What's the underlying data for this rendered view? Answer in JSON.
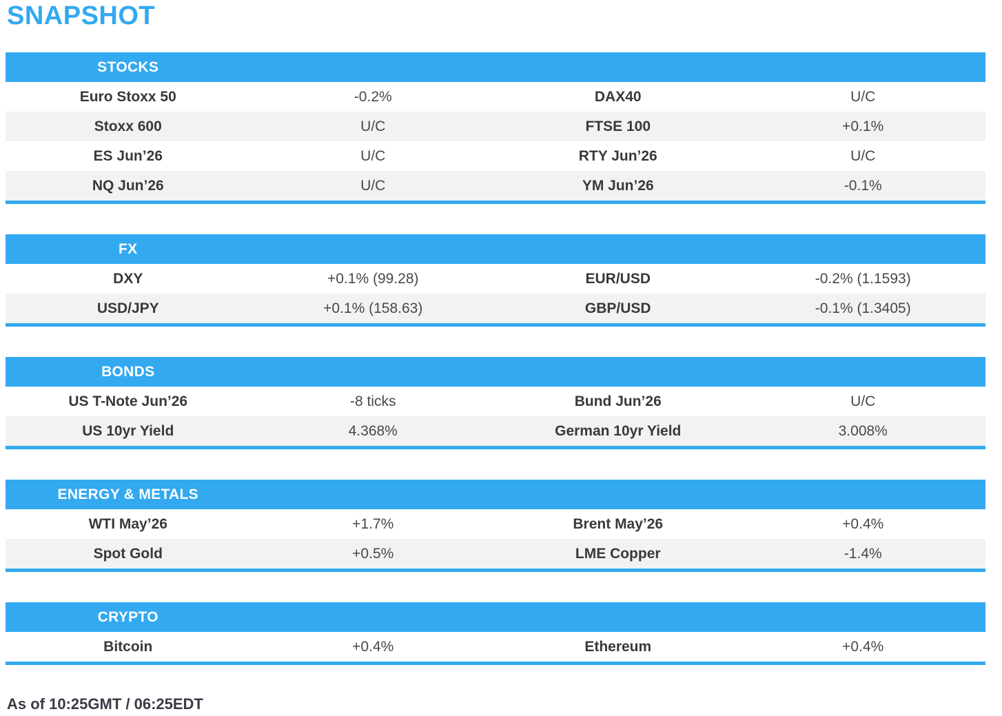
{
  "page": {
    "title": "SNAPSHOT",
    "footer": "As of 10:25GMT / 06:25EDT"
  },
  "colors": {
    "accent_blue": "#33a9f0",
    "row_alt_gray": "#f2f2f2",
    "text_dark": "#3c3e42",
    "header_text": "#ffffff"
  },
  "sections": {
    "stocks": {
      "header": "STOCKS",
      "rows": [
        {
          "l1": "Euro Stoxx 50",
          "v1": "-0.2%",
          "l2": "DAX40",
          "v2": "U/C"
        },
        {
          "l1": "Stoxx 600",
          "v1": "U/C",
          "l2": "FTSE 100",
          "v2": "+0.1%"
        },
        {
          "l1": "ES Jun’26",
          "v1": "U/C",
          "l2": "RTY Jun’26",
          "v2": "U/C"
        },
        {
          "l1": "NQ Jun’26",
          "v1": "U/C",
          "l2": "YM Jun’26",
          "v2": "-0.1%"
        }
      ]
    },
    "fx": {
      "header": "FX",
      "rows": [
        {
          "l1": "DXY",
          "v1": "+0.1% (99.28)",
          "l2": "EUR/USD",
          "v2": "-0.2% (1.1593)"
        },
        {
          "l1": "USD/JPY",
          "v1": "+0.1% (158.63)",
          "l2": "GBP/USD",
          "v2": "-0.1% (1.3405)"
        }
      ]
    },
    "bonds": {
      "header": "BONDS",
      "rows": [
        {
          "l1": "US T-Note Jun’26",
          "v1": "-8 ticks",
          "l2": "Bund Jun’26",
          "v2": "U/C"
        },
        {
          "l1": "US 10yr Yield",
          "v1": "4.368%",
          "l2": "German 10yr Yield",
          "v2": "3.008%"
        }
      ]
    },
    "energy_metals": {
      "header": "ENERGY & METALS",
      "rows": [
        {
          "l1": "WTI May’26",
          "v1": "+1.7%",
          "l2": "Brent May’26",
          "v2": "+0.4%"
        },
        {
          "l1": "Spot Gold",
          "v1": "+0.5%",
          "l2": "LME Copper",
          "v2": "-1.4%"
        }
      ]
    },
    "crypto": {
      "header": "CRYPTO",
      "rows": [
        {
          "l1": "Bitcoin",
          "v1": "+0.4%",
          "l2": "Ethereum",
          "v2": "+0.4%"
        }
      ]
    }
  }
}
